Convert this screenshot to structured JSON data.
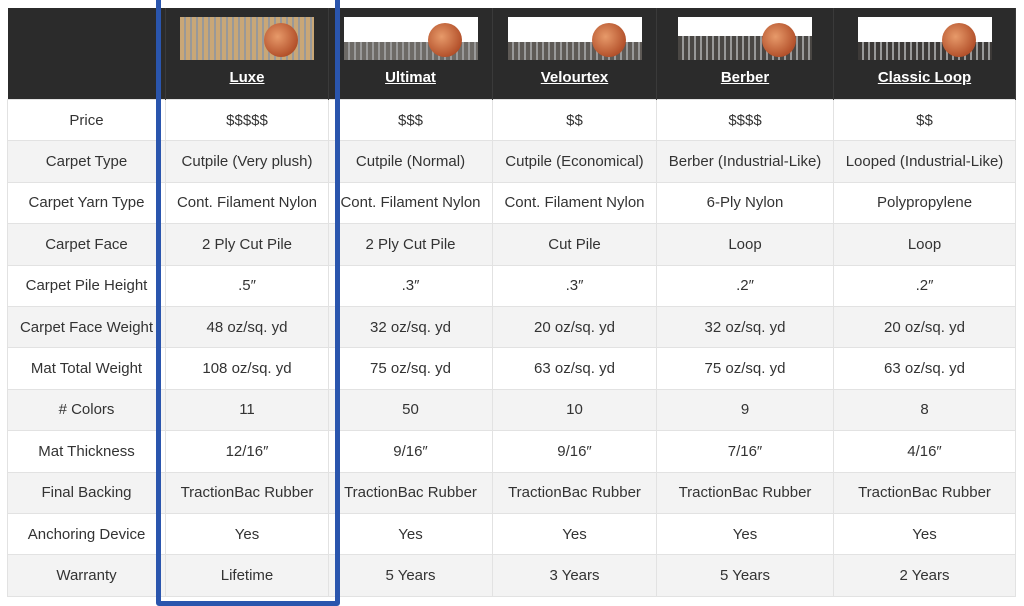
{
  "accent_color": "#2a55ad",
  "products": [
    {
      "name": "Luxe",
      "icon": "carpet-sample-image",
      "pile_color": "#c9a777"
    },
    {
      "name": "Ultimat",
      "icon": "carpet-sample-image",
      "pile_color": "#6d6a66"
    },
    {
      "name": "Velourtex",
      "icon": "carpet-sample-image",
      "pile_color": "#5e5a56"
    },
    {
      "name": "Berber",
      "icon": "carpet-sample-image",
      "pile_color": "#4a4744"
    },
    {
      "name": "Classic Loop",
      "icon": "carpet-sample-image",
      "pile_color": "#3d3a38"
    }
  ],
  "rows": [
    {
      "label": "Price",
      "values": [
        "$$$$$",
        "$$$",
        "$$",
        "$$$$",
        "$$"
      ]
    },
    {
      "label": "Carpet Type",
      "values": [
        "Cutpile (Very plush)",
        "Cutpile (Normal)",
        "Cutpile (Economical)",
        "Berber (Industrial-Like)",
        "Looped (Industrial-Like)"
      ]
    },
    {
      "label": "Carpet Yarn Type",
      "values": [
        "Cont. Filament Nylon",
        "Cont. Filament Nylon",
        "Cont. Filament Nylon",
        "6-Ply Nylon",
        "Polypropylene"
      ]
    },
    {
      "label": "Carpet Face",
      "values": [
        "2 Ply Cut Pile",
        "2 Ply Cut Pile",
        "Cut Pile",
        "Loop",
        "Loop"
      ]
    },
    {
      "label": "Carpet Pile Height",
      "values": [
        ".5″",
        ".3″",
        ".3″",
        ".2″",
        ".2″"
      ]
    },
    {
      "label": "Carpet Face Weight",
      "values": [
        "48 oz/sq. yd",
        "32 oz/sq. yd",
        "20 oz/sq. yd",
        "32 oz/sq. yd",
        "20 oz/sq. yd"
      ]
    },
    {
      "label": "Mat Total Weight",
      "values": [
        "108 oz/sq. yd",
        "75 oz/sq. yd",
        "63 oz/sq. yd",
        "75 oz/sq. yd",
        "63 oz/sq. yd"
      ]
    },
    {
      "label": "# Colors",
      "values": [
        "11",
        "50",
        "10",
        "9",
        "8"
      ]
    },
    {
      "label": "Mat Thickness",
      "values": [
        "12/16″",
        "9/16″",
        "9/16″",
        "7/16″",
        "4/16″"
      ]
    },
    {
      "label": "Final Backing",
      "values": [
        "TractionBac Rubber",
        "TractionBac Rubber",
        "TractionBac Rubber",
        "TractionBac Rubber",
        "TractionBac Rubber"
      ]
    },
    {
      "label": "Anchoring Device",
      "values": [
        "Yes",
        "Yes",
        "Yes",
        "Yes",
        "Yes"
      ]
    },
    {
      "label": "Warranty",
      "values": [
        "Lifetime",
        "5 Years",
        "3 Years",
        "5 Years",
        "2 Years"
      ]
    }
  ]
}
